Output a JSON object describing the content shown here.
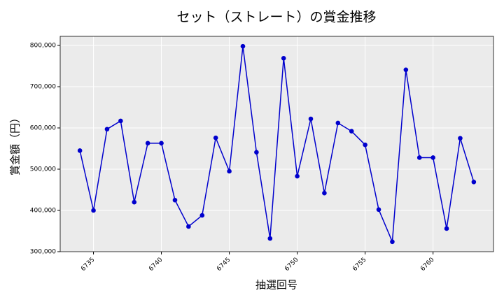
{
  "chart_data": {
    "type": "line",
    "title": "セット（ストレート）の賞金推移",
    "x_label": "抽選回号",
    "y_label": "賞金額（円）",
    "x": [
      6734,
      6735,
      6736,
      6737,
      6738,
      6739,
      6740,
      6741,
      6742,
      6743,
      6744,
      6745,
      6746,
      6747,
      6748,
      6749,
      6750,
      6751,
      6752,
      6753,
      6754,
      6755,
      6756,
      6757,
      6758,
      6759,
      6760,
      6761,
      6762,
      6763
    ],
    "series": [
      {
        "name": "賞金",
        "color": "#0000cd",
        "values": [
          545000,
          400000,
          597000,
          617000,
          420000,
          563000,
          563000,
          425000,
          361000,
          388000,
          576000,
          495000,
          798000,
          541000,
          332000,
          769000,
          483000,
          622000,
          442000,
          612000,
          592000,
          559000,
          402000,
          324000,
          741000,
          528000,
          528000,
          356000,
          575000,
          469000
        ]
      }
    ],
    "xlim": [
      6732.55,
      6764.45
    ],
    "ylim": [
      300000,
      822000
    ],
    "xticks": [
      6735,
      6740,
      6745,
      6750,
      6755,
      6760
    ],
    "yticks": [
      {
        "value": 300000,
        "label": "300,000"
      },
      {
        "value": 400000,
        "label": "400,000"
      },
      {
        "value": 500000,
        "label": "500,000"
      },
      {
        "value": 600000,
        "label": "600,000"
      },
      {
        "value": 700000,
        "label": "700,000"
      },
      {
        "value": 800000,
        "label": "800,000"
      }
    ],
    "grid": true
  }
}
